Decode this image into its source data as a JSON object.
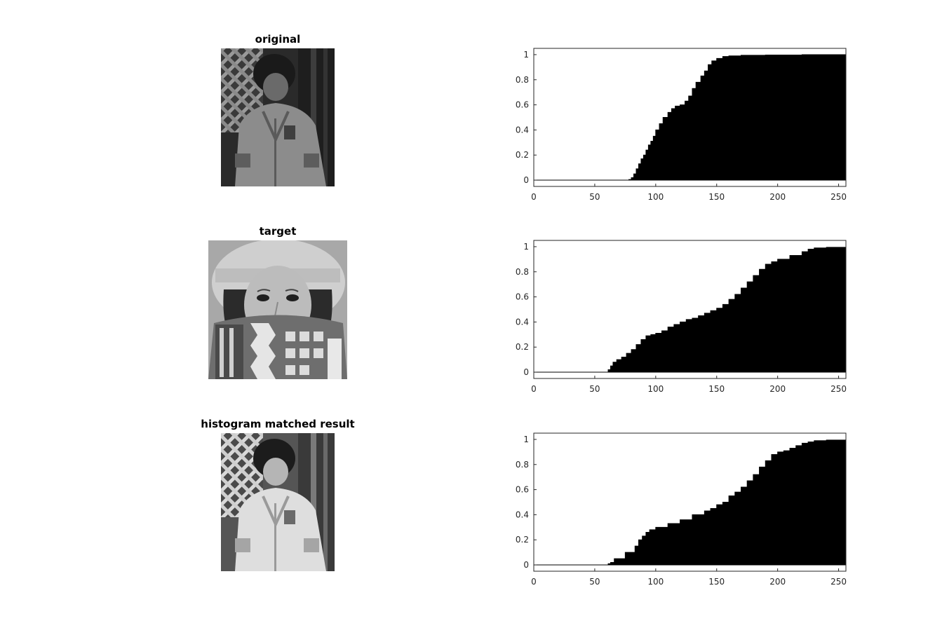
{
  "images": [
    {
      "title": "original",
      "subject": "child-in-jacket-photo",
      "tone": "dark"
    },
    {
      "title": "target",
      "subject": "woman-with-hat-and-scarf-photo",
      "tone": "bright"
    },
    {
      "title": "histogram matched result",
      "subject": "child-in-jacket-photo",
      "tone": "bright"
    }
  ],
  "chart_data": [
    {
      "type": "area",
      "title": "",
      "xlabel": "",
      "ylabel": "",
      "xlim": [
        0,
        256
      ],
      "ylim": [
        -0.05,
        1.05
      ],
      "xticks": [
        0,
        50,
        100,
        150,
        200,
        250
      ],
      "yticks": [
        0,
        0.2,
        0.4,
        0.6,
        0.8,
        1
      ],
      "ytick_labels": [
        "0",
        "0.2",
        "0.4",
        "0.6",
        "0.8",
        "1"
      ],
      "fill_color": "#000000",
      "grid": false,
      "x": [
        0,
        75,
        78,
        80,
        82,
        84,
        86,
        88,
        90,
        92,
        94,
        96,
        98,
        100,
        103,
        106,
        110,
        113,
        116,
        120,
        124,
        127,
        130,
        133,
        137,
        140,
        143,
        146,
        150,
        155,
        160,
        170,
        190,
        220,
        256
      ],
      "y": [
        0,
        0,
        0.005,
        0.02,
        0.05,
        0.09,
        0.13,
        0.17,
        0.2,
        0.24,
        0.28,
        0.31,
        0.35,
        0.4,
        0.45,
        0.5,
        0.54,
        0.57,
        0.59,
        0.6,
        0.63,
        0.67,
        0.73,
        0.78,
        0.83,
        0.87,
        0.92,
        0.95,
        0.97,
        0.985,
        0.99,
        0.995,
        0.997,
        1.0,
        1.0
      ]
    },
    {
      "type": "area",
      "title": "",
      "xlabel": "",
      "ylabel": "",
      "xlim": [
        0,
        256
      ],
      "ylim": [
        -0.05,
        1.05
      ],
      "xticks": [
        0,
        50,
        100,
        150,
        200,
        250
      ],
      "yticks": [
        0,
        0.2,
        0.4,
        0.6,
        0.8,
        1
      ],
      "ytick_labels": [
        "0",
        "0.2",
        "0.4",
        "0.6",
        "0.8",
        "1"
      ],
      "fill_color": "#000000",
      "grid": false,
      "x": [
        0,
        59,
        61,
        63,
        65,
        68,
        72,
        76,
        80,
        84,
        88,
        92,
        96,
        100,
        105,
        110,
        115,
        120,
        125,
        130,
        135,
        140,
        145,
        150,
        155,
        160,
        165,
        170,
        175,
        180,
        185,
        190,
        195,
        200,
        210,
        220,
        225,
        230,
        240,
        256
      ],
      "y": [
        0,
        0,
        0.02,
        0.05,
        0.08,
        0.1,
        0.12,
        0.15,
        0.18,
        0.22,
        0.26,
        0.29,
        0.3,
        0.31,
        0.33,
        0.36,
        0.38,
        0.4,
        0.42,
        0.43,
        0.45,
        0.47,
        0.49,
        0.51,
        0.54,
        0.58,
        0.62,
        0.67,
        0.72,
        0.77,
        0.82,
        0.86,
        0.88,
        0.9,
        0.93,
        0.96,
        0.98,
        0.99,
        0.995,
        1.0
      ]
    },
    {
      "type": "area",
      "title": "",
      "xlabel": "",
      "ylabel": "",
      "xlim": [
        0,
        256
      ],
      "ylim": [
        -0.05,
        1.05
      ],
      "xticks": [
        0,
        50,
        100,
        150,
        200,
        250
      ],
      "yticks": [
        0,
        0.2,
        0.4,
        0.6,
        0.8,
        1
      ],
      "ytick_labels": [
        "0",
        "0.2",
        "0.4",
        "0.6",
        "0.8",
        "1"
      ],
      "fill_color": "#000000",
      "grid": false,
      "x": [
        0,
        59,
        61,
        63,
        66,
        70,
        75,
        80,
        83,
        86,
        89,
        92,
        95,
        100,
        105,
        110,
        115,
        120,
        125,
        130,
        135,
        140,
        145,
        150,
        155,
        160,
        165,
        170,
        175,
        180,
        185,
        190,
        195,
        200,
        205,
        210,
        215,
        220,
        225,
        230,
        240,
        256
      ],
      "y": [
        0,
        0,
        0.01,
        0.02,
        0.05,
        0.05,
        0.1,
        0.1,
        0.15,
        0.2,
        0.23,
        0.26,
        0.28,
        0.3,
        0.3,
        0.33,
        0.33,
        0.36,
        0.36,
        0.4,
        0.4,
        0.43,
        0.45,
        0.48,
        0.5,
        0.55,
        0.58,
        0.62,
        0.67,
        0.72,
        0.78,
        0.83,
        0.88,
        0.9,
        0.91,
        0.93,
        0.95,
        0.97,
        0.98,
        0.99,
        0.995,
        1.0
      ]
    }
  ]
}
